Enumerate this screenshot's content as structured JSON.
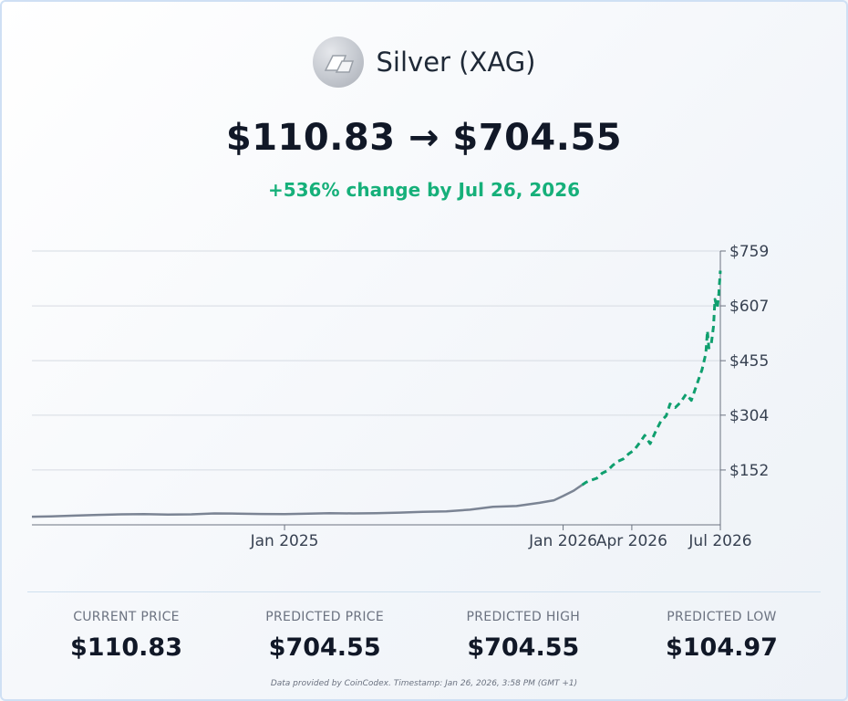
{
  "header": {
    "asset_name": "Silver (XAG)",
    "logo_icon": "silver-bar-icon"
  },
  "price_change_text": "$110.83 → $704.55",
  "change_text": "+536% change by Jul 26, 2026",
  "colors": {
    "history": "#7b8494",
    "forecast": "#0f9f6e",
    "change": "#16b07a",
    "grid": "#d6dbe2"
  },
  "chart_data": {
    "type": "line",
    "y_axis": {
      "position": "right",
      "ticks": [
        152,
        304,
        455,
        607,
        759
      ],
      "tick_labels": [
        "$152",
        "$304",
        "$455",
        "$607",
        "$759"
      ],
      "ylim": [
        0,
        759
      ]
    },
    "x_axis": {
      "xlim": [
        "2024-02-05",
        "2026-07-26"
      ],
      "ticks": [
        "2025-01-01",
        "2026-01-01",
        "2026-04-01",
        "2026-07-26"
      ],
      "tick_labels": [
        "Jan 2025",
        "Jan 2026",
        "Apr 2026",
        "Jul 2026"
      ]
    },
    "grid": true,
    "series": [
      {
        "style": "solid",
        "points": [
          [
            "2024-02-05",
            22.6
          ],
          [
            "2024-03-01",
            23.5
          ],
          [
            "2024-04-01",
            25.5
          ],
          [
            "2024-05-01",
            27.5
          ],
          [
            "2024-06-01",
            29.0
          ],
          [
            "2024-07-01",
            29.5
          ],
          [
            "2024-08-01",
            28.5
          ],
          [
            "2024-09-01",
            29.0
          ],
          [
            "2024-10-01",
            31.5
          ],
          [
            "2024-11-01",
            31.0
          ],
          [
            "2024-12-01",
            30.0
          ],
          [
            "2025-01-01",
            29.5
          ],
          [
            "2025-02-01",
            31.0
          ],
          [
            "2025-03-01",
            32.5
          ],
          [
            "2025-04-01",
            31.5
          ],
          [
            "2025-05-01",
            32.5
          ],
          [
            "2025-06-01",
            34.0
          ],
          [
            "2025-07-01",
            36.0
          ],
          [
            "2025-08-01",
            37.5
          ],
          [
            "2025-09-01",
            42.0
          ],
          [
            "2025-10-01",
            50.0
          ],
          [
            "2025-11-01",
            52.0
          ],
          [
            "2025-12-01",
            61.0
          ],
          [
            "2025-12-20",
            68.0
          ],
          [
            "2026-01-01",
            80.0
          ],
          [
            "2026-01-15",
            95.0
          ],
          [
            "2026-01-26",
            110.83
          ]
        ]
      },
      {
        "style": "dashed",
        "points": [
          [
            "2026-01-26",
            110.83
          ],
          [
            "2026-01-31",
            118.0
          ],
          [
            "2026-02-07",
            124.0
          ],
          [
            "2026-02-14",
            129.0
          ],
          [
            "2026-02-21",
            143.0
          ],
          [
            "2026-02-28",
            150.0
          ],
          [
            "2026-03-07",
            165.0
          ],
          [
            "2026-03-14",
            176.0
          ],
          [
            "2026-03-21",
            183.0
          ],
          [
            "2026-03-28",
            197.0
          ],
          [
            "2026-04-04",
            207.0
          ],
          [
            "2026-04-11",
            227.0
          ],
          [
            "2026-04-18",
            248.0
          ],
          [
            "2026-04-25",
            225.0
          ],
          [
            "2026-05-02",
            258.0
          ],
          [
            "2026-05-09",
            287.0
          ],
          [
            "2026-05-16",
            302.0
          ],
          [
            "2026-05-21",
            335.0
          ],
          [
            "2026-05-28",
            325.0
          ],
          [
            "2026-06-04",
            340.0
          ],
          [
            "2026-06-11",
            362.0
          ],
          [
            "2026-06-18",
            345.0
          ],
          [
            "2026-06-25",
            388.0
          ],
          [
            "2026-07-02",
            430.0
          ],
          [
            "2026-07-07",
            475.0
          ],
          [
            "2026-07-09",
            538.0
          ],
          [
            "2026-07-11",
            490.0
          ],
          [
            "2026-07-14",
            500.0
          ],
          [
            "2026-07-17",
            550.0
          ],
          [
            "2026-07-19",
            625.0
          ],
          [
            "2026-07-22",
            600.0
          ],
          [
            "2026-07-24",
            640.0
          ],
          [
            "2026-07-26",
            704.55
          ]
        ]
      }
    ]
  },
  "stats": [
    {
      "label": "CURRENT PRICE",
      "value": "$110.83"
    },
    {
      "label": "PREDICTED PRICE",
      "value": "$704.55"
    },
    {
      "label": "PREDICTED HIGH",
      "value": "$704.55"
    },
    {
      "label": "PREDICTED LOW",
      "value": "$104.97"
    }
  ],
  "footnote": "Data provided by CoinCodex. Timestamp: Jan 26, 2026, 3:58 PM (GMT +1)"
}
